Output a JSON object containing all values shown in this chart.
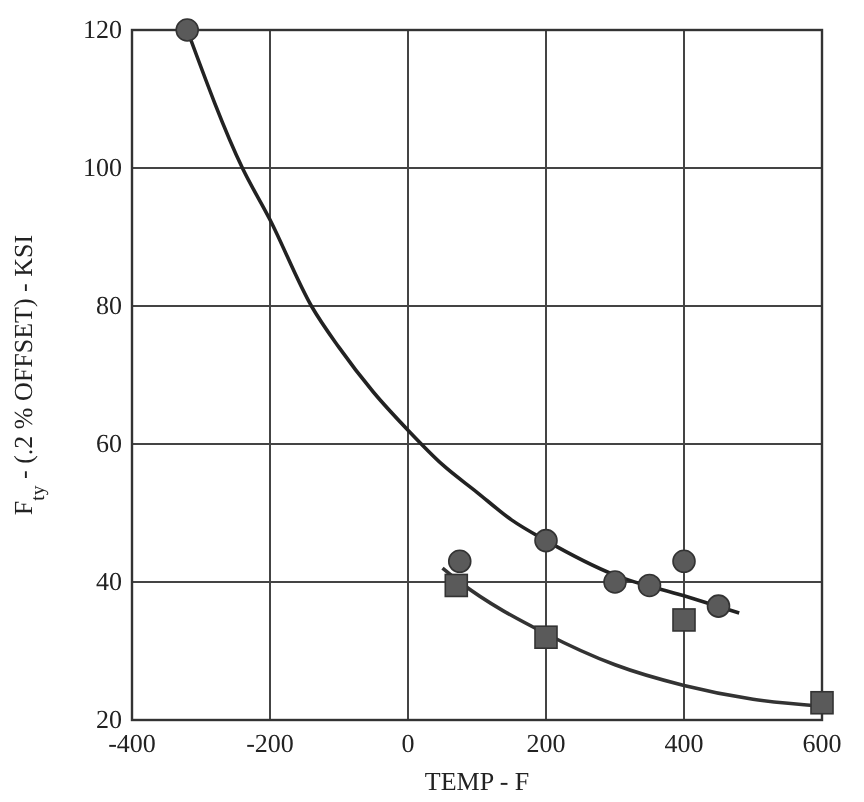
{
  "chart_data": {
    "type": "scatter",
    "xlabel": "TEMP - F",
    "ylabel": "F$_{ty}$ - (.2 % OFFSET) - KSI",
    "xlim": [
      -400,
      600
    ],
    "ylim": [
      20,
      120
    ],
    "xticks": [
      -400,
      -200,
      0,
      200,
      400,
      600
    ],
    "yticks": [
      20,
      40,
      60,
      80,
      100,
      120
    ],
    "grid": true,
    "series": [
      {
        "type": "line",
        "color": "#222222",
        "x": [
          -320,
          -240,
          -200,
          -140,
          -100,
          -50,
          0,
          50,
          100,
          150,
          200,
          300,
          400,
          480
        ],
        "values": [
          120,
          100,
          92.5,
          80,
          74,
          67.5,
          62,
          57,
          53,
          49,
          46,
          41,
          38,
          35.5
        ]
      },
      {
        "type": "line",
        "color": "#333333",
        "x": [
          50,
          75,
          200,
          300,
          400,
          500,
          600
        ],
        "values": [
          42,
          40,
          32.5,
          28,
          25,
          23,
          22
        ]
      },
      {
        "marker": "circle",
        "color": "#5a5a5a",
        "x": [
          -320,
          75,
          200,
          300,
          350,
          400,
          450
        ],
        "values": [
          120,
          43,
          46,
          40,
          39.5,
          43,
          36.5
        ]
      },
      {
        "marker": "square",
        "color": "#5a5a5a",
        "x": [
          70,
          200,
          400,
          600
        ],
        "values": [
          39.5,
          32,
          34.5,
          22.5
        ]
      }
    ]
  }
}
